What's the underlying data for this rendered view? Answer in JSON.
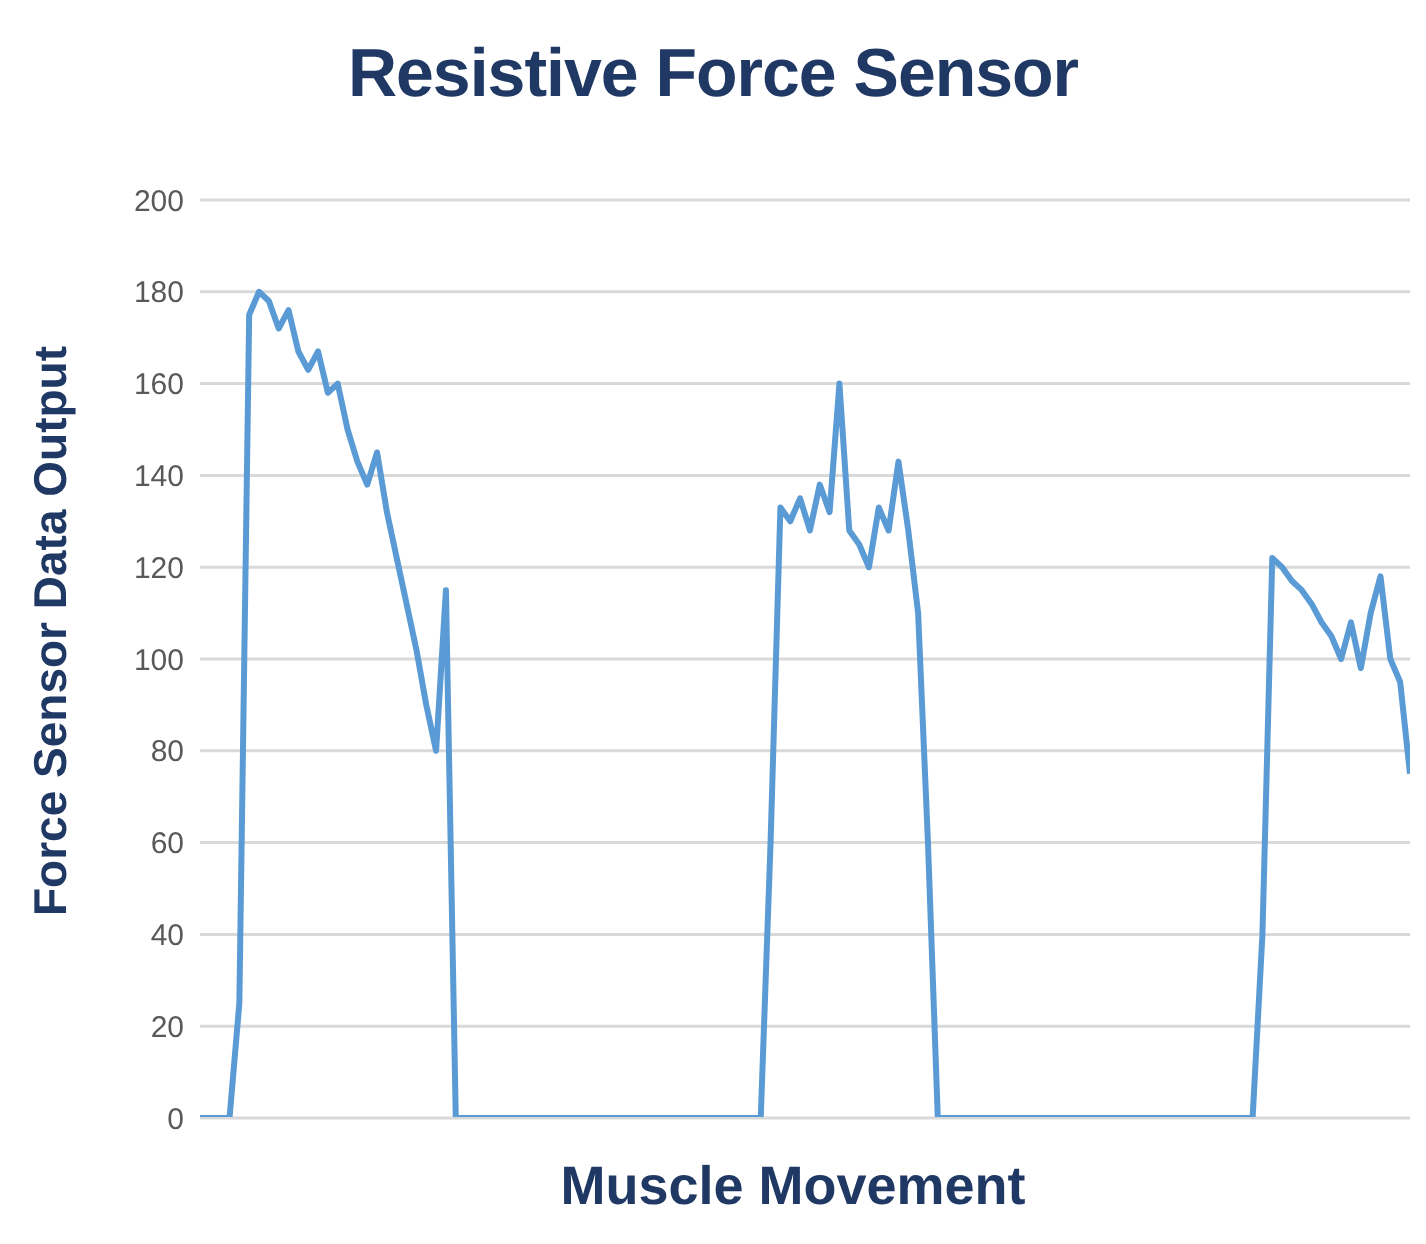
{
  "chart_data": {
    "type": "line",
    "title": "Resistive Force Sensor",
    "xlabel": "Muscle Movement",
    "ylabel": "Force Sensor Data Output",
    "categories": [
      null,
      null,
      null,
      null,
      null,
      null,
      null,
      null,
      null,
      null,
      null,
      null,
      null,
      null,
      null,
      null,
      null,
      null,
      null,
      null,
      null,
      null,
      null,
      null,
      null,
      null,
      null,
      null,
      null,
      null,
      null,
      null,
      null,
      null,
      null,
      null,
      null,
      null,
      null,
      null,
      null,
      null,
      null,
      null,
      null,
      null,
      null,
      null,
      null,
      null,
      null,
      null,
      null,
      null,
      null,
      null,
      null,
      null,
      null,
      null,
      null,
      null,
      null,
      null,
      null,
      null,
      null,
      null,
      null,
      null,
      null,
      null,
      null,
      null,
      null,
      null,
      null,
      null,
      null,
      null,
      null,
      null,
      null,
      null,
      null,
      null,
      null,
      null,
      null,
      null,
      null,
      null,
      null,
      null,
      null,
      null,
      null,
      null,
      null,
      null,
      null,
      null,
      null,
      null,
      null,
      null,
      null,
      null,
      null,
      null,
      null,
      null,
      null,
      null,
      null,
      null,
      null,
      null,
      null,
      null,
      null,
      null,
      null,
      null
    ],
    "series": [
      {
        "color": "#5b9bd5",
        "values": [
          0,
          0,
          0,
          0,
          25,
          175,
          180,
          178,
          172,
          176,
          167,
          163,
          167,
          158,
          160,
          150,
          143,
          138,
          145,
          132,
          122,
          112,
          102,
          90,
          80,
          115,
          0,
          0,
          0,
          0,
          0,
          0,
          0,
          0,
          0,
          0,
          0,
          0,
          0,
          0,
          0,
          0,
          0,
          0,
          0,
          0,
          0,
          0,
          0,
          0,
          0,
          0,
          0,
          0,
          0,
          0,
          0,
          0,
          60,
          133,
          130,
          135,
          128,
          138,
          132,
          160,
          128,
          125,
          120,
          133,
          128,
          143,
          128,
          110,
          60,
          0,
          0,
          0,
          0,
          0,
          0,
          0,
          0,
          0,
          0,
          0,
          0,
          0,
          0,
          0,
          0,
          0,
          0,
          0,
          0,
          0,
          0,
          0,
          0,
          0,
          0,
          0,
          0,
          0,
          0,
          0,
          0,
          0,
          40,
          122,
          120,
          117,
          115,
          112,
          108,
          105,
          100,
          108,
          98,
          110,
          118,
          100,
          95,
          75
        ]
      }
    ],
    "ylim": [
      0,
      200
    ],
    "yticks": [
      0,
      20,
      40,
      60,
      80,
      100,
      120,
      140,
      160,
      180,
      200
    ],
    "grid": "y",
    "tick_labels": "y",
    "marker": "none",
    "line_style": "solid",
    "legend": false
  }
}
